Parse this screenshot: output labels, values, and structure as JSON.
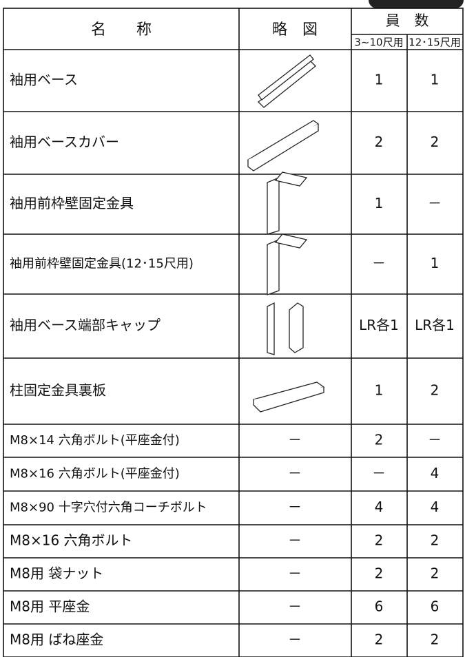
{
  "table": {
    "header": {
      "name": "名　　称",
      "figure": "略　図",
      "count": "員　数",
      "sub": [
        "3~10尺用",
        "12･15尺用"
      ]
    },
    "rows": [
      [
        "袖用ベース",
        null,
        "1",
        "1"
      ],
      [
        "袖用ベースカバー",
        null,
        "2",
        "2"
      ],
      [
        "袖用前枠壁固定金具",
        null,
        "1",
        "－"
      ],
      [
        "袖用前枠壁固定金具(12･15尺用)",
        null,
        "－",
        "1"
      ],
      [
        "袖用ベース端部キャップ",
        null,
        "LR各1",
        "LR各1"
      ],
      [
        "柱固定金具裏板",
        null,
        "1",
        "2"
      ],
      [
        "M8×14 六角ボルト(平座金付)",
        "－",
        "2",
        "－"
      ],
      [
        "M8×16 六角ボルト(平座金付)",
        "－",
        "－",
        "4"
      ],
      [
        "M8×90 十字穴付六角コーチボルト",
        "－",
        "4",
        "4"
      ],
      [
        "M8×16 六角ボルト",
        "－",
        "2",
        "2"
      ],
      [
        "M8用 袋ナット",
        "－",
        "2",
        "2"
      ],
      [
        "M8用 平座金",
        "－",
        "6",
        "6"
      ],
      [
        "M8用 ばね座金",
        "－",
        "2",
        "2"
      ]
    ]
  }
}
